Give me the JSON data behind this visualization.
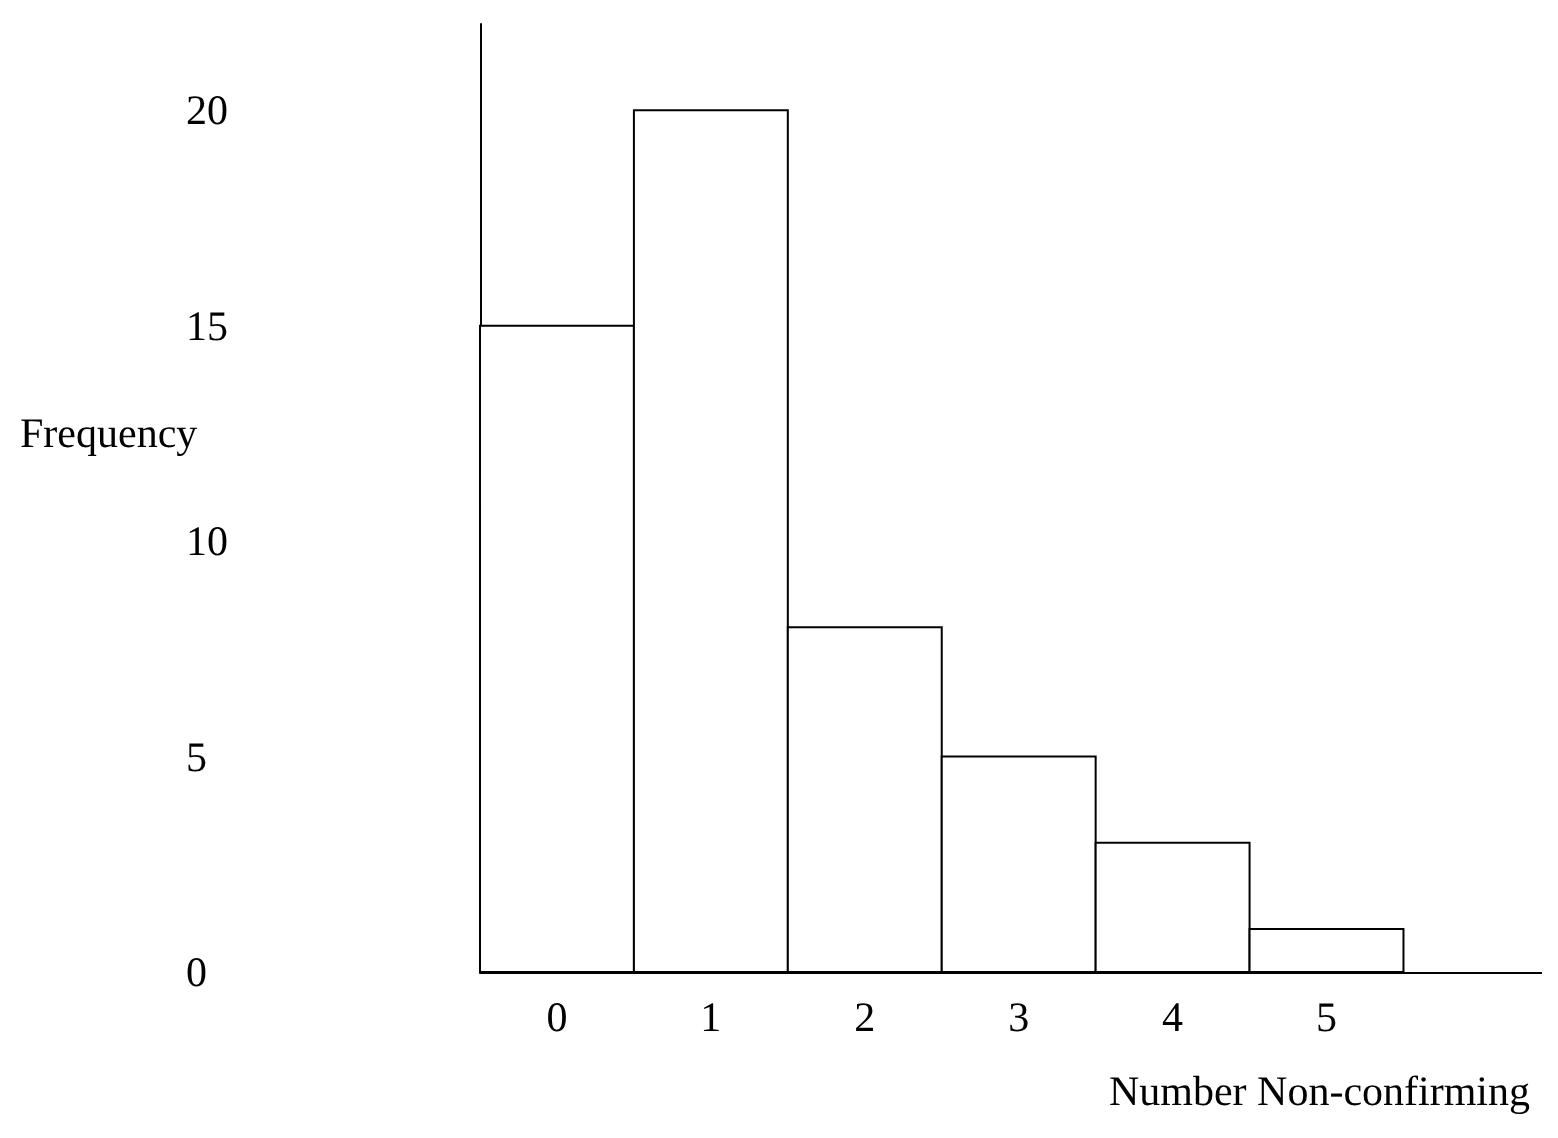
{
  "chart_data": {
    "type": "histogram",
    "xlabel": "Number Non-confirming",
    "ylabel": "Frequency",
    "bins": [
      -0.5,
      0.5,
      1.5,
      2.5,
      3.5,
      4.5,
      5.5
    ],
    "values": [
      15,
      20,
      8,
      5,
      3,
      1
    ],
    "color": "#ffffff",
    "xlim": [
      -0.5,
      6.4
    ],
    "xticks": [
      0,
      1,
      2,
      3,
      4,
      5
    ],
    "ylim": [
      0,
      22
    ],
    "yticks": [
      0,
      5,
      10,
      15,
      20
    ]
  }
}
